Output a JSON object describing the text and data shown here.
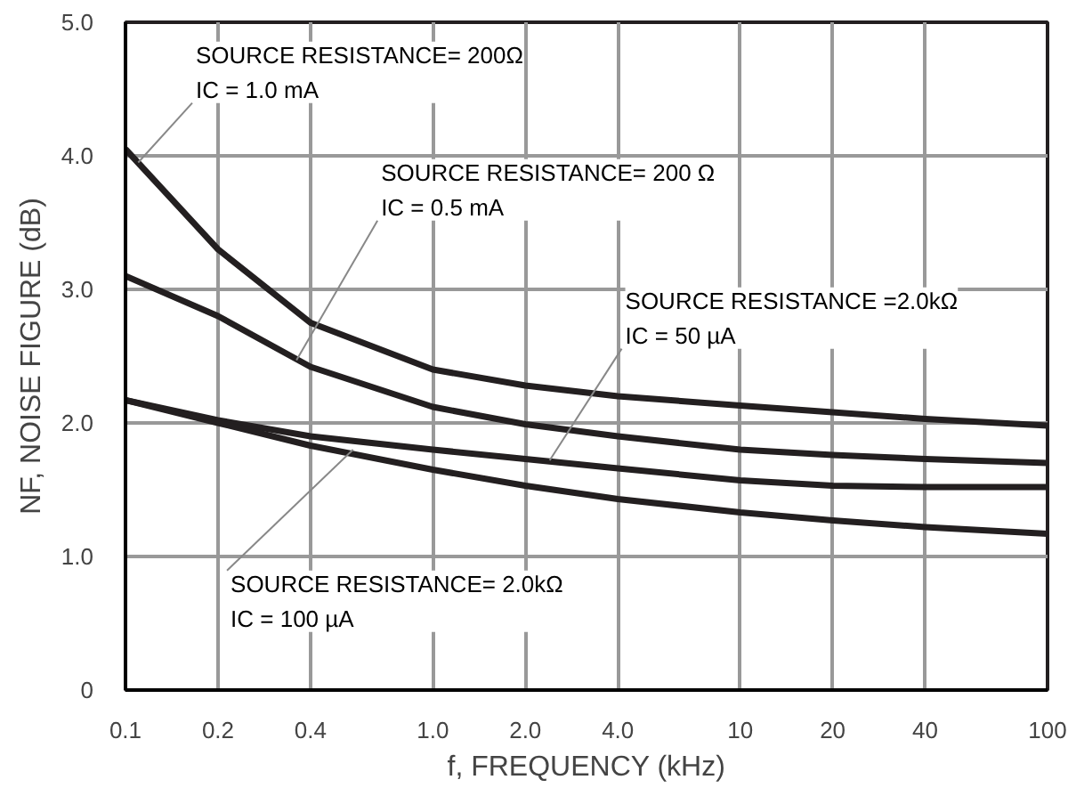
{
  "chart_data": {
    "type": "line",
    "xlabel": "f, FREQUENCY (kHz)",
    "ylabel": "NF, NOISE FIGURE (dB)",
    "log": "x",
    "xlim": [
      0.1,
      100
    ],
    "ylim": [
      0,
      5
    ],
    "xticks": [
      {
        "value": 0.1,
        "label": "0.1"
      },
      {
        "value": 0.2,
        "label": "0.2"
      },
      {
        "value": 0.4,
        "label": "0.4"
      },
      {
        "value": 1,
        "label": "1.0"
      },
      {
        "value": 2,
        "label": "2.0"
      },
      {
        "value": 4,
        "label": "4.0"
      },
      10,
      20,
      40,
      100
    ],
    "yticks": [
      0,
      {
        "value": 1,
        "label": "1.0"
      },
      {
        "value": 2,
        "label": "2.0"
      },
      {
        "value": 3,
        "label": "3.0"
      },
      {
        "value": 4,
        "label": "4.0"
      },
      {
        "value": 5,
        "label": "5.0"
      }
    ],
    "grid": true,
    "marker": "none",
    "line_style": "solid",
    "x": [
      0.1,
      0.2,
      0.4,
      1,
      2,
      4,
      10,
      20,
      40,
      100
    ],
    "series": [
      {
        "color": "#231f20",
        "values": [
          4.05,
          3.3,
          2.75,
          2.4,
          2.28,
          2.2,
          2.13,
          2.08,
          2.03,
          1.98
        ]
      },
      {
        "color": "#231f20",
        "values": [
          3.1,
          2.8,
          2.42,
          2.12,
          1.99,
          1.9,
          1.8,
          1.76,
          1.73,
          1.7
        ]
      },
      {
        "color": "#231f20",
        "values": [
          2.17,
          2.02,
          1.9,
          1.8,
          1.73,
          1.66,
          1.57,
          1.53,
          1.52,
          1.52
        ]
      },
      {
        "color": "#231f20",
        "values": [
          2.17,
          2.0,
          1.83,
          1.65,
          1.53,
          1.43,
          1.33,
          1.27,
          1.22,
          1.17
        ]
      }
    ],
    "annotations": [
      {
        "text": "SOURCE RESISTANCE= 200Ω\nIC = 1.0 mA",
        "x": 0.11,
        "y": 3.95
      },
      {
        "text": "SOURCE RESISTANCE= 200 Ω\nIC = 0.5 mA",
        "x": 0.36,
        "y": 2.47
      },
      {
        "text": "SOURCE RESISTANCE =2.0kΩ\nIC = 50 µA",
        "x": 2.4,
        "y": 1.72
      },
      {
        "text": "SOURCE RESISTANCE= 2.0kΩ\nIC = 100 µA",
        "x": 0.55,
        "y": 1.8
      }
    ]
  }
}
